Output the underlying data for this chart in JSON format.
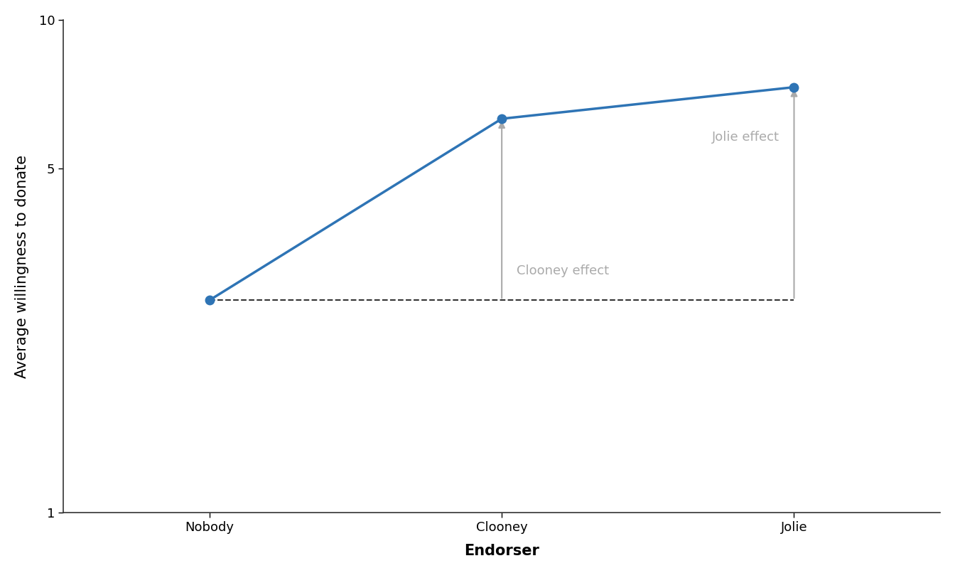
{
  "x_labels": [
    "Nobody",
    "Clooney",
    "Jolie"
  ],
  "x_positions": [
    0,
    1,
    2
  ],
  "y_values": [
    2.7,
    6.3,
    7.3
  ],
  "baseline_y": 2.7,
  "ylim_log": [
    1,
    10
  ],
  "yticks": [
    1,
    5,
    10
  ],
  "ytick_labels": [
    "1",
    "5",
    "10"
  ],
  "xlabel": "Endorser",
  "ylabel": "Average willingness to donate",
  "line_color": "#2e74b5",
  "line_width": 2.5,
  "marker_size": 9,
  "marker_color": "#2e74b5",
  "dashed_line_color": "#333333",
  "arrow_color": "#aaaaaa",
  "clooney_label": "Clooney effect",
  "jolie_label": "Jolie effect",
  "background_color": "#ffffff",
  "axis_label_fontsize": 15,
  "tick_fontsize": 13,
  "annotation_fontsize": 13
}
